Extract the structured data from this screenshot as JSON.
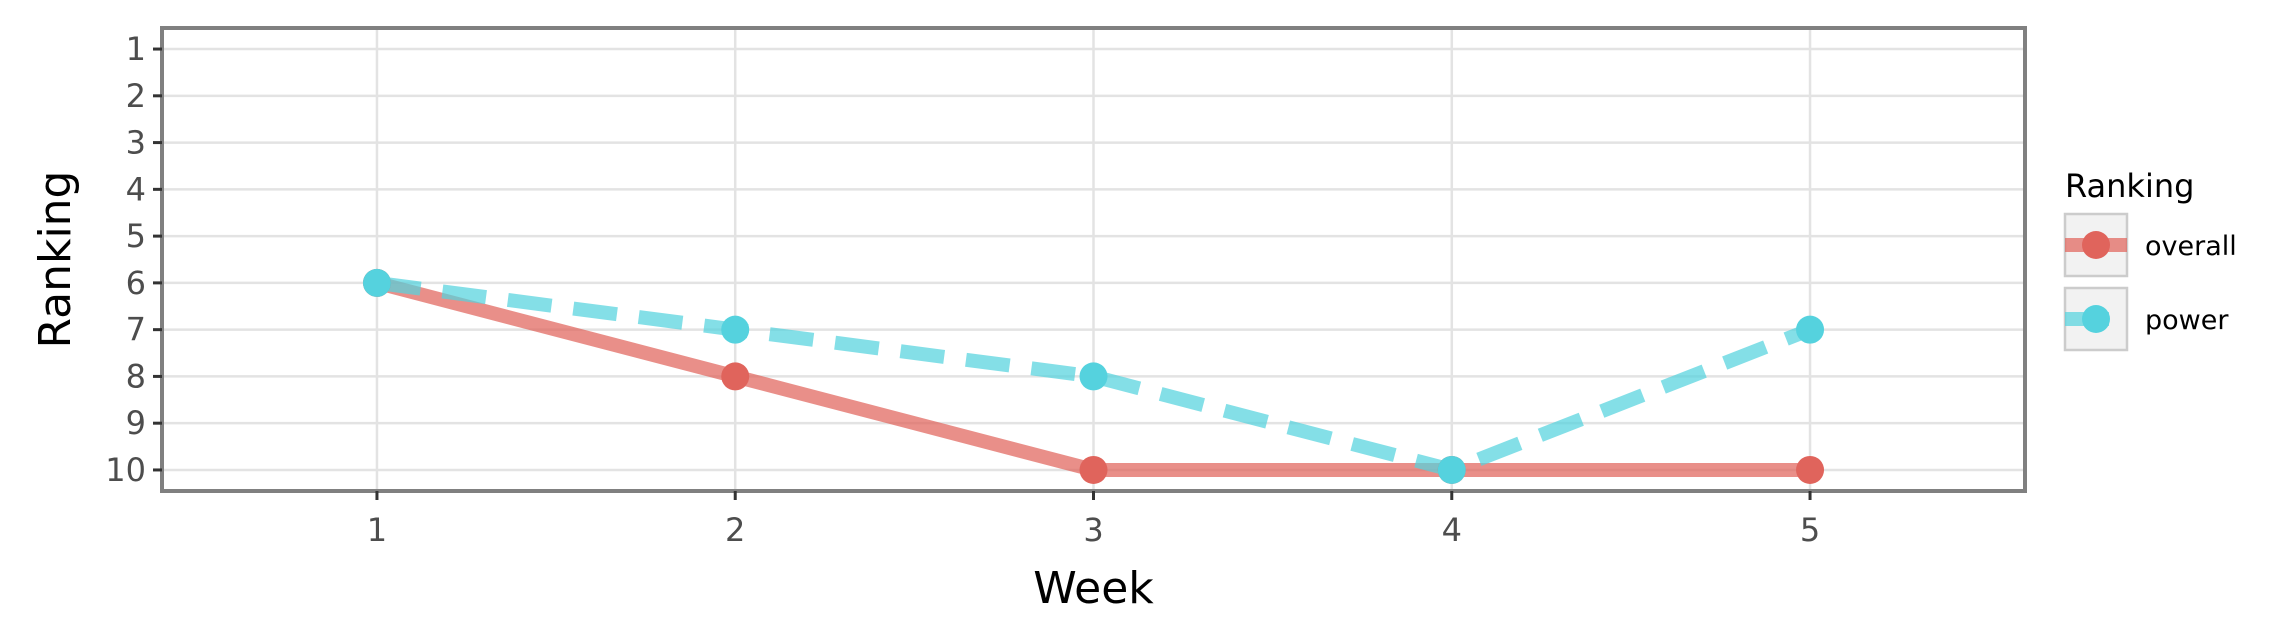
{
  "chart_data": {
    "type": "line",
    "xlabel": "Week",
    "ylabel": "Ranking",
    "x": [
      1,
      2,
      3,
      4,
      5
    ],
    "x_ticks": [
      "1",
      "2",
      "3",
      "4",
      "5"
    ],
    "xlim": [
      0.4,
      5.6
    ],
    "y_ticks": [
      "1",
      "2",
      "3",
      "4",
      "5",
      "6",
      "7",
      "8",
      "9",
      "10"
    ],
    "ylim": [
      0.55,
      10.45
    ],
    "y_reversed": true,
    "grid": true,
    "legend": {
      "title": "Ranking",
      "position": "right"
    },
    "series": [
      {
        "name": "overall",
        "values": [
          6,
          8,
          10,
          10,
          10
        ],
        "color": "#e0645c",
        "line_style": "solid"
      },
      {
        "name": "power",
        "values": [
          6,
          7,
          8,
          10,
          7
        ],
        "color": "#55d2de",
        "line_style": "dashed"
      }
    ]
  }
}
